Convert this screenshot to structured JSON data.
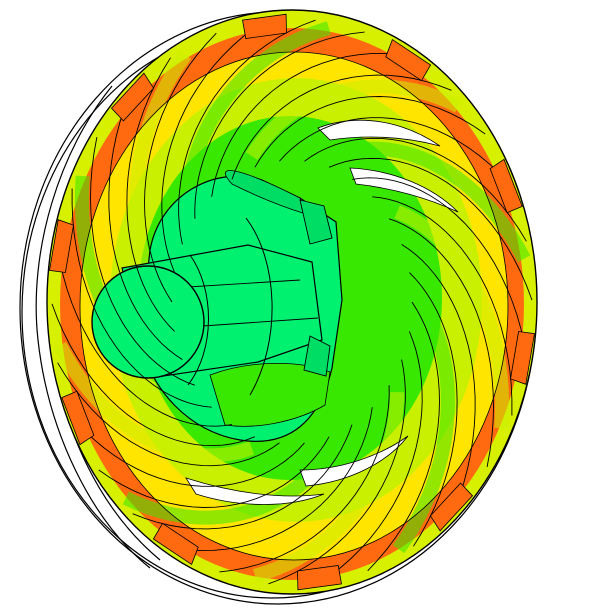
{
  "colors": {
    "background": "#ffffff",
    "outline": "#000000",
    "band_outer": "#d7f000",
    "band_orange": "#ff6a10",
    "band_yellow": "#ffe500",
    "band_lime": "#c9f000",
    "band_green": "#39e800",
    "hub": "#00f070",
    "hub_dark": "#00dd64"
  },
  "blade_count": 10,
  "icons": {
    "impeller": "impeller-render"
  }
}
